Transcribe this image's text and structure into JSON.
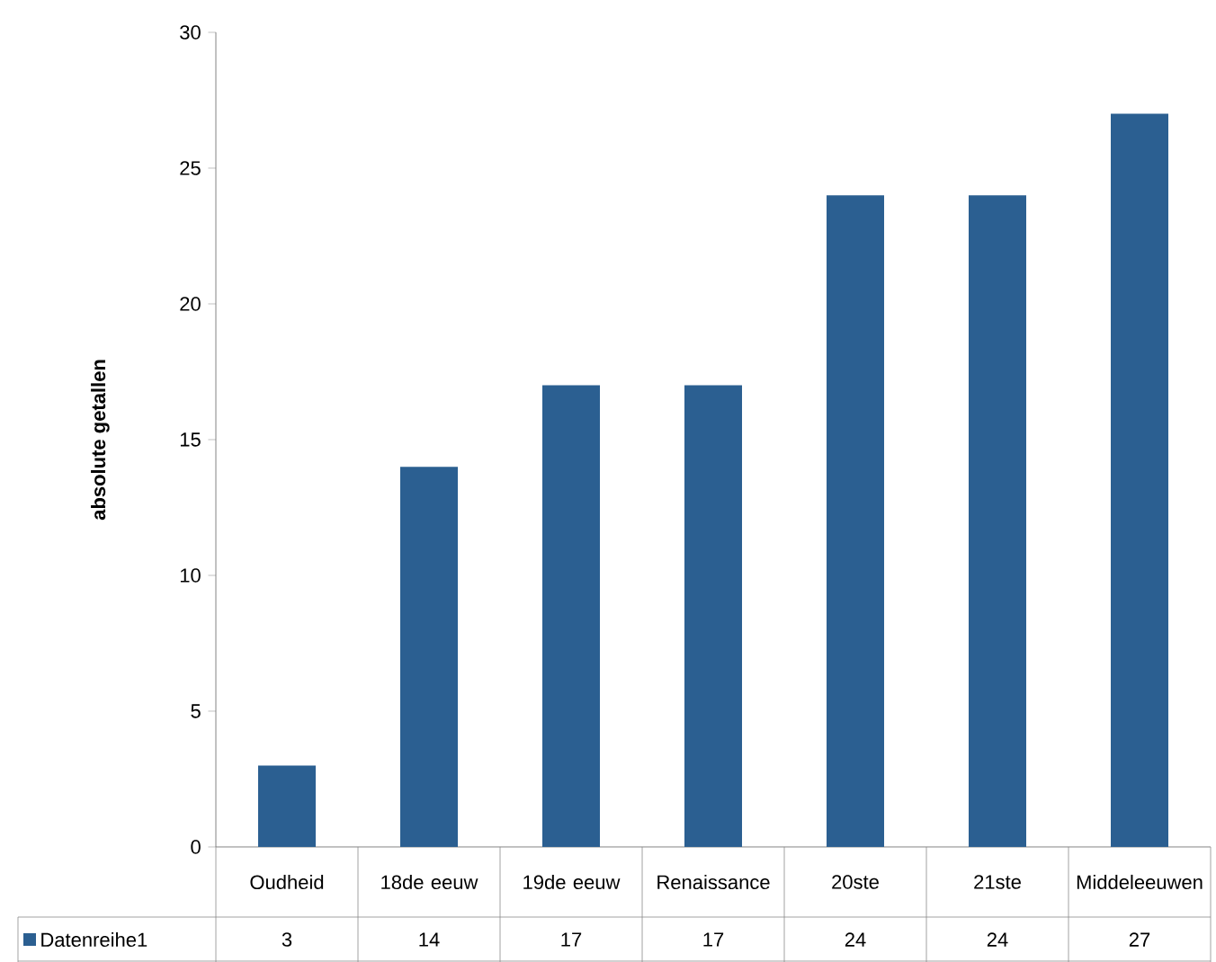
{
  "chart_data": {
    "type": "bar",
    "ylabel": "absolute getallen",
    "categories": [
      "Oudheid",
      "18de eeuw",
      "19de eeuw",
      "Renaissance",
      "20ste",
      "21ste",
      "Middeleeuwen"
    ],
    "series": [
      {
        "name": "Datenreihe1",
        "color": "#2b5f91",
        "values": [
          3,
          14,
          17,
          17,
          24,
          24,
          27
        ]
      }
    ],
    "ylim": [
      0,
      30
    ],
    "yticks": [
      0,
      5,
      10,
      15,
      20,
      25,
      30
    ],
    "data_labels": true,
    "legend": "bottom",
    "grid": false
  }
}
